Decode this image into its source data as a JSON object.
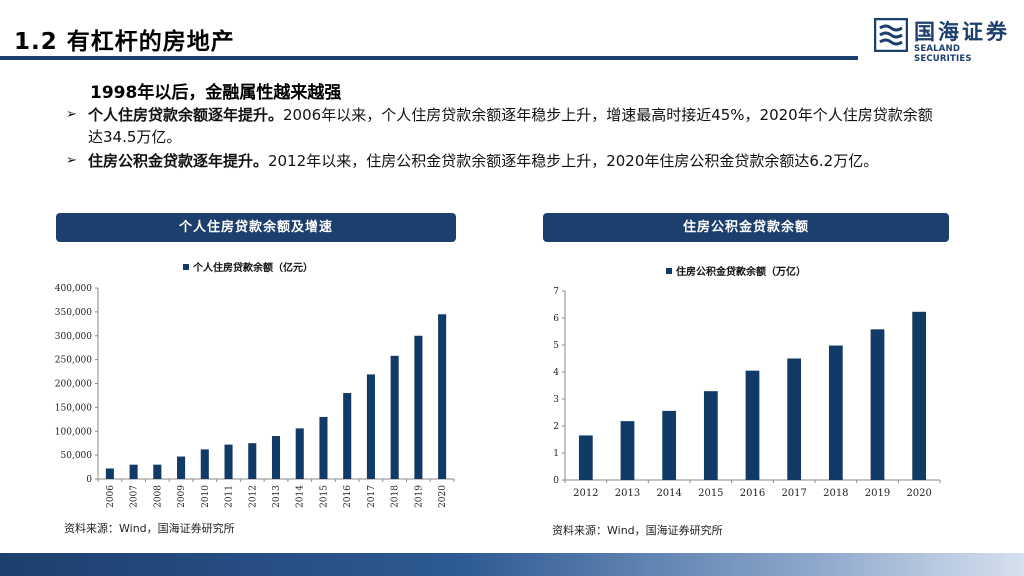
{
  "header": {
    "title": "1.2 有杠杆的房地产"
  },
  "logo": {
    "cn": "国海证券",
    "en": "SEALAND SECURITIES"
  },
  "section": {
    "heading": "1998年以后，金融属性越来越强"
  },
  "bullets": [
    {
      "bold": "个人住房贷款余额逐年提升。",
      "text": "2006年以来，个人住房贷款余额逐年稳步上升，增速最高时接近45%，2020年个人住房贷款余额达34.5万亿。"
    },
    {
      "bold": "住房公积金贷款逐年提升。",
      "text": "2012年以来，住房公积金贷款余额逐年稳步上升，2020年住房公积金贷款余额达6.2万亿。"
    }
  ],
  "panels": {
    "left_title": "个人住房贷款余额及增速",
    "right_title": "住房公积金贷款余额"
  },
  "sources": {
    "left": "资料来源：Wind，国海证券研究所",
    "right": "资料来源：Wind，国海证券研究所"
  },
  "colors": {
    "brand": "#1d3f6e",
    "bar": "#123a66"
  },
  "chart_data": [
    {
      "type": "bar",
      "legend": "个人住房贷款余额（亿元）",
      "legend_position": "top-center",
      "categories": [
        "2006",
        "2007",
        "2008",
        "2009",
        "2010",
        "2011",
        "2012",
        "2013",
        "2014",
        "2015",
        "2016",
        "2017",
        "2018",
        "2019",
        "2020"
      ],
      "series": [
        {
          "name": "个人住房贷款余额（亿元）",
          "values": [
            22000,
            30000,
            30000,
            47000,
            62000,
            72000,
            75000,
            90000,
            106000,
            130000,
            180000,
            219000,
            258000,
            300000,
            345000
          ]
        }
      ],
      "ylim": [
        0,
        400000
      ],
      "yticks": [
        "0",
        "50,000",
        "100,000",
        "150,000",
        "200,000",
        "250,000",
        "300,000",
        "350,000",
        "400,000"
      ],
      "xlabel_rotated": true,
      "grid": false
    },
    {
      "type": "bar",
      "legend": "住房公积金贷款余额（万亿）",
      "legend_position": "top-center",
      "categories": [
        "2012",
        "2013",
        "2014",
        "2015",
        "2016",
        "2017",
        "2018",
        "2019",
        "2020"
      ],
      "series": [
        {
          "name": "住房公积金贷款余额（万亿）",
          "values": [
            1.65,
            2.18,
            2.56,
            3.29,
            4.05,
            4.5,
            4.98,
            5.58,
            6.23
          ]
        }
      ],
      "ylim": [
        0,
        7
      ],
      "yticks": [
        "0",
        "1",
        "2",
        "3",
        "4",
        "5",
        "6",
        "7"
      ],
      "xlabel_rotated": false,
      "grid": false
    }
  ]
}
